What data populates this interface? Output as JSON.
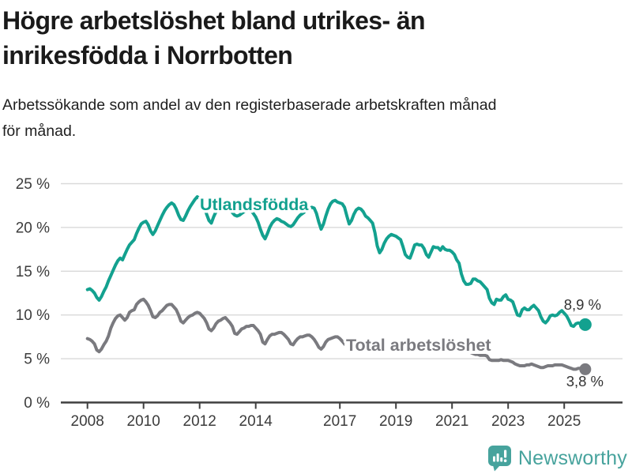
{
  "header": {
    "title_line1": "Högre arbetslöshet bland utrikes- än",
    "title_line2": "inrikesfödda i Norrbotten",
    "subtitle_line1": "Arbetssökande som andel av den registerbaserade arbetskraften månad",
    "subtitle_line2": "för månad."
  },
  "footer": {
    "brand": "Newsworthy"
  },
  "colors": {
    "foreign": "#13a18f",
    "total": "#7a7a7f",
    "grid": "#d9d9d9",
    "axis": "#3f3f3f",
    "axis_text": "#3c3c3c",
    "value_label": "#333333",
    "logo": "#47a39d",
    "background": "#ffffff"
  },
  "chart_data": {
    "type": "line",
    "unit": "%",
    "title": "Högre arbetslöshet bland utrikes- än inrikesfödda i Norrbotten",
    "subtitle": "Arbetssökande som andel av den registerbaserade arbetskraften månad för månad.",
    "x_start_year": 2008,
    "points_per_year": 12,
    "x_range": [
      2008.0,
      2025.75
    ],
    "ylim": [
      0,
      25
    ],
    "y_ticks": [
      0,
      5,
      10,
      15,
      20,
      25
    ],
    "y_tick_labels": [
      "0 %",
      "5 %",
      "10 %",
      "15 %",
      "20 %",
      "25 %"
    ],
    "x_tick_years": [
      2008,
      2010,
      2012,
      2014,
      2017,
      2019,
      2021,
      2023,
      2025
    ],
    "x_tick_labels": [
      "2008",
      "2010",
      "2012",
      "2014",
      "2017",
      "2019",
      "2021",
      "2023",
      "2025"
    ],
    "grid": true,
    "legend_position": "inline-labels",
    "series": [
      {
        "name": "Utlandsfödda",
        "color_key": "foreign",
        "end_label": "8,9 %",
        "end_value": 8.9,
        "values": [
          12.9,
          13.0,
          12.8,
          12.5,
          12.0,
          11.7,
          12.1,
          12.7,
          13.2,
          13.9,
          14.5,
          15.1,
          15.7,
          16.2,
          16.5,
          16.3,
          16.9,
          17.5,
          18.0,
          18.3,
          18.6,
          19.3,
          19.9,
          20.4,
          20.6,
          20.7,
          20.3,
          19.6,
          19.2,
          19.6,
          20.2,
          20.8,
          21.4,
          21.9,
          22.3,
          22.6,
          22.8,
          22.6,
          22.1,
          21.4,
          20.9,
          20.8,
          21.3,
          21.9,
          22.4,
          22.8,
          23.2,
          23.5,
          23.3,
          22.9,
          22.4,
          21.5,
          20.8,
          20.5,
          21.2,
          21.8,
          22.1,
          22.3,
          22.4,
          22.5,
          22.3,
          22.0,
          21.7,
          21.4,
          21.3,
          21.4,
          21.6,
          21.8,
          21.9,
          22.0,
          21.9,
          21.6,
          21.2,
          20.6,
          19.8,
          19.1,
          18.7,
          19.3,
          20.0,
          20.5,
          20.8,
          21.0,
          20.9,
          20.7,
          20.6,
          20.4,
          20.2,
          20.1,
          20.3,
          20.7,
          21.1,
          21.4,
          21.6,
          21.8,
          22.0,
          22.2,
          22.3,
          22.2,
          21.6,
          20.6,
          19.8,
          20.4,
          21.3,
          22.1,
          22.7,
          23.0,
          23.1,
          22.9,
          22.8,
          22.7,
          22.3,
          21.3,
          20.4,
          20.8,
          21.5,
          22.0,
          22.2,
          22.1,
          21.8,
          21.3,
          21.1,
          20.8,
          20.5,
          19.4,
          17.9,
          17.1,
          17.5,
          18.2,
          18.7,
          19.0,
          19.2,
          19.1,
          19.0,
          18.8,
          18.6,
          17.8,
          16.9,
          16.6,
          16.5,
          17.2,
          18.0,
          18.1,
          18.0,
          18.0,
          17.6,
          16.9,
          16.6,
          17.2,
          17.8,
          17.7,
          17.7,
          17.4,
          17.8,
          17.5,
          17.4,
          17.4,
          17.2,
          16.9,
          16.3,
          15.9,
          14.7,
          13.9,
          13.5,
          13.5,
          13.6,
          14.1,
          14.1,
          13.9,
          13.8,
          13.5,
          13.2,
          12.9,
          11.9,
          11.4,
          11.2,
          11.8,
          11.7,
          11.7,
          12.1,
          12.3,
          11.8,
          11.7,
          11.5,
          10.7,
          10.0,
          9.9,
          10.6,
          10.8,
          10.6,
          10.6,
          10.9,
          11.1,
          10.8,
          10.5,
          9.8,
          9.3,
          9.1,
          9.4,
          9.9,
          10.0,
          9.9,
          10.0,
          10.3,
          10.5,
          10.2,
          9.9,
          9.4,
          8.8,
          8.7,
          9.0,
          9.1,
          9.0,
          8.9,
          8.9
        ]
      },
      {
        "name": "Total arbetslöshet",
        "color_key": "total",
        "end_label": "3,8 %",
        "end_value": 3.8,
        "values": [
          7.3,
          7.2,
          7.0,
          6.7,
          6.0,
          5.8,
          6.1,
          6.6,
          7.0,
          7.6,
          8.5,
          9.1,
          9.6,
          9.9,
          10.0,
          9.7,
          9.4,
          9.7,
          10.3,
          10.5,
          10.6,
          11.2,
          11.5,
          11.7,
          11.8,
          11.5,
          11.1,
          10.5,
          9.8,
          9.7,
          9.9,
          10.3,
          10.5,
          10.8,
          11.1,
          11.2,
          11.2,
          10.9,
          10.6,
          10.0,
          9.3,
          9.1,
          9.4,
          9.7,
          9.9,
          10.0,
          10.2,
          10.3,
          10.2,
          9.9,
          9.6,
          9.1,
          8.4,
          8.2,
          8.5,
          9.0,
          9.3,
          9.4,
          9.6,
          9.7,
          9.4,
          9.1,
          8.7,
          7.9,
          7.8,
          8.1,
          8.4,
          8.5,
          8.7,
          8.7,
          8.8,
          8.8,
          8.5,
          8.2,
          7.8,
          6.9,
          6.7,
          7.2,
          7.6,
          7.8,
          7.8,
          7.9,
          8.0,
          8.0,
          7.8,
          7.5,
          7.2,
          6.7,
          6.6,
          7.0,
          7.3,
          7.5,
          7.5,
          7.6,
          7.7,
          7.7,
          7.5,
          7.2,
          6.8,
          6.3,
          6.1,
          6.4,
          6.9,
          7.2,
          7.3,
          7.4,
          7.5,
          7.5,
          7.3,
          7.0,
          6.7,
          6.4,
          6.3,
          6.7,
          7.2,
          7.3,
          7.3,
          7.4,
          7.4,
          7.4,
          7.2,
          7.0,
          6.7,
          6.3,
          6.0,
          6.2,
          6.5,
          6.6,
          6.7,
          6.7,
          6.8,
          6.8,
          6.7,
          6.5,
          6.3,
          6.0,
          5.9,
          6.1,
          6.4,
          6.5,
          6.6,
          6.6,
          6.7,
          6.8,
          6.9,
          7.0,
          7.2,
          7.4,
          7.5,
          7.6,
          7.7,
          7.6,
          7.5,
          7.4,
          7.3,
          7.2,
          7.0,
          6.8,
          6.6,
          6.4,
          6.2,
          6.0,
          5.9,
          5.8,
          5.7,
          5.6,
          5.5,
          5.5,
          5.4,
          5.4,
          5.4,
          5.3,
          4.9,
          4.8,
          4.8,
          4.8,
          4.8,
          4.9,
          4.8,
          4.8,
          4.8,
          4.7,
          4.6,
          4.4,
          4.3,
          4.2,
          4.2,
          4.2,
          4.3,
          4.3,
          4.4,
          4.3,
          4.2,
          4.1,
          4.0,
          4.0,
          4.1,
          4.2,
          4.2,
          4.2,
          4.3,
          4.3,
          4.3,
          4.3,
          4.2,
          4.1,
          4.0,
          3.9,
          3.8,
          3.8,
          3.9,
          3.9,
          3.9,
          3.8
        ]
      }
    ]
  }
}
